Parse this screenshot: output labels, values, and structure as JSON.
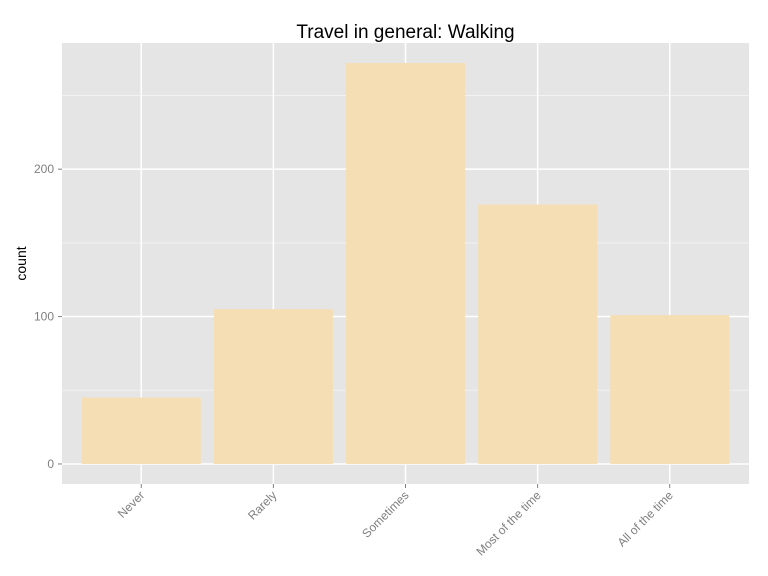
{
  "chart_data": {
    "type": "bar",
    "title": "Travel in general: Walking",
    "xlabel": "",
    "ylabel": "count",
    "categories": [
      "Never",
      "Rarely",
      "Sometimes",
      "Most of the time",
      "All of the time"
    ],
    "values": [
      45,
      105,
      272,
      176,
      101
    ],
    "ylim": [
      -13.6,
      285.6
    ],
    "yticks": [
      0,
      100,
      200
    ],
    "grid": true,
    "legend": "none",
    "colors": {
      "bar": "#f5deb3",
      "panel": "#e5e5e5",
      "grid_major": "#ffffff",
      "grid_minor": "#f2f2f2",
      "tick_text": "#7f7f7f"
    }
  }
}
